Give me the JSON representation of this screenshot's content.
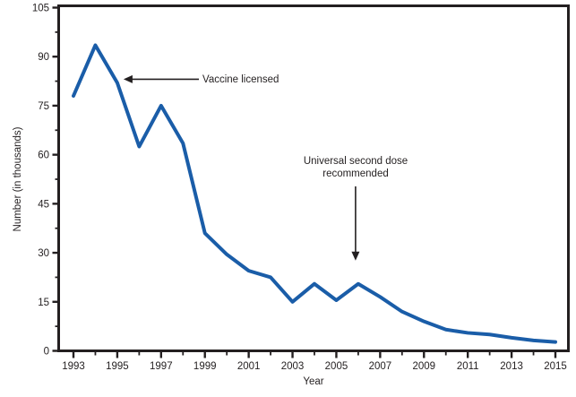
{
  "chart_data": {
    "type": "line",
    "title": "",
    "xlabel": "Year",
    "ylabel": "Number (in thousands)",
    "x": [
      1993,
      1994,
      1995,
      1996,
      1997,
      1998,
      1999,
      2000,
      2001,
      2002,
      2003,
      2004,
      2005,
      2006,
      2007,
      2008,
      2009,
      2010,
      2011,
      2012,
      2013,
      2014,
      2015
    ],
    "values": [
      78,
      93.5,
      82,
      62.5,
      75,
      63.5,
      36,
      29.5,
      24.5,
      22.5,
      15,
      20.5,
      15.5,
      20.5,
      16.5,
      12,
      9,
      6.5,
      5.5,
      5,
      4,
      3.2,
      2.7
    ],
    "ylim": [
      0,
      105
    ],
    "y_ticks": [
      0,
      15,
      30,
      45,
      60,
      75,
      90,
      105
    ],
    "y_minor_step": 7.5,
    "x_major_ticks": [
      1993,
      1995,
      1997,
      1999,
      2001,
      2003,
      2005,
      2007,
      2009,
      2011,
      2013,
      2015
    ],
    "x_minor_ticks": [
      1994,
      1996,
      1998,
      2000,
      2002,
      2004,
      2006,
      2008,
      2010,
      2012,
      2014
    ],
    "grid": false,
    "legend": "none",
    "line_color": "#1A5DA8",
    "axis_color": "#231F20",
    "annotations": [
      {
        "text": "Vaccine licensed",
        "arrow": "left",
        "target_year": 1995,
        "target_value": 82
      },
      {
        "text": "Universal second dose\nrecommended",
        "arrow": "down",
        "target_year": 2006,
        "target_value": 20.5
      }
    ]
  }
}
